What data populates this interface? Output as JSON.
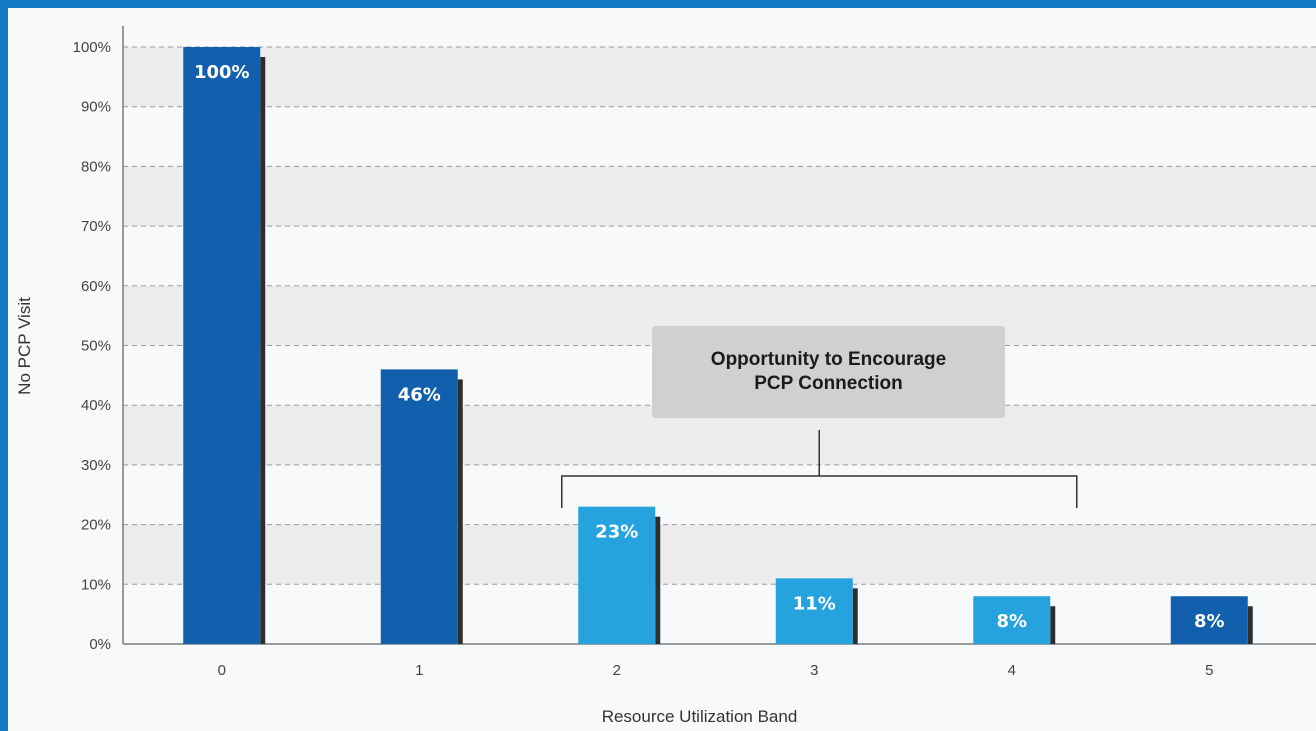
{
  "chart_data": {
    "type": "bar",
    "categories": [
      "0",
      "1",
      "2",
      "3",
      "4",
      "5"
    ],
    "values": [
      100,
      46,
      23,
      11,
      8,
      8
    ],
    "data_labels": [
      "100%",
      "46%",
      "23%",
      "11%",
      "8%",
      "8%"
    ],
    "bar_colors": [
      "#1260ad",
      "#1260ad",
      "#26a3de",
      "#26a3de",
      "#26a3de",
      "#1260ad"
    ],
    "xlabel": "Resource Utilization Band",
    "ylabel": "No PCP Visit",
    "ylim": [
      0,
      100
    ],
    "yticks": [
      "0%",
      "10%",
      "20%",
      "30%",
      "40%",
      "50%",
      "60%",
      "70%",
      "80%",
      "90%",
      "100%"
    ],
    "grid": true,
    "annotation": {
      "text": "Opportunity to Encourage\nPCP Connection",
      "spans_categories": [
        "2",
        "4"
      ]
    }
  },
  "colors": {
    "background": "#f8f9fb",
    "band": "#ececed",
    "grid": "#9a9a9a",
    "shadow": "#2e2e2e",
    "frame": "#1479c4"
  }
}
